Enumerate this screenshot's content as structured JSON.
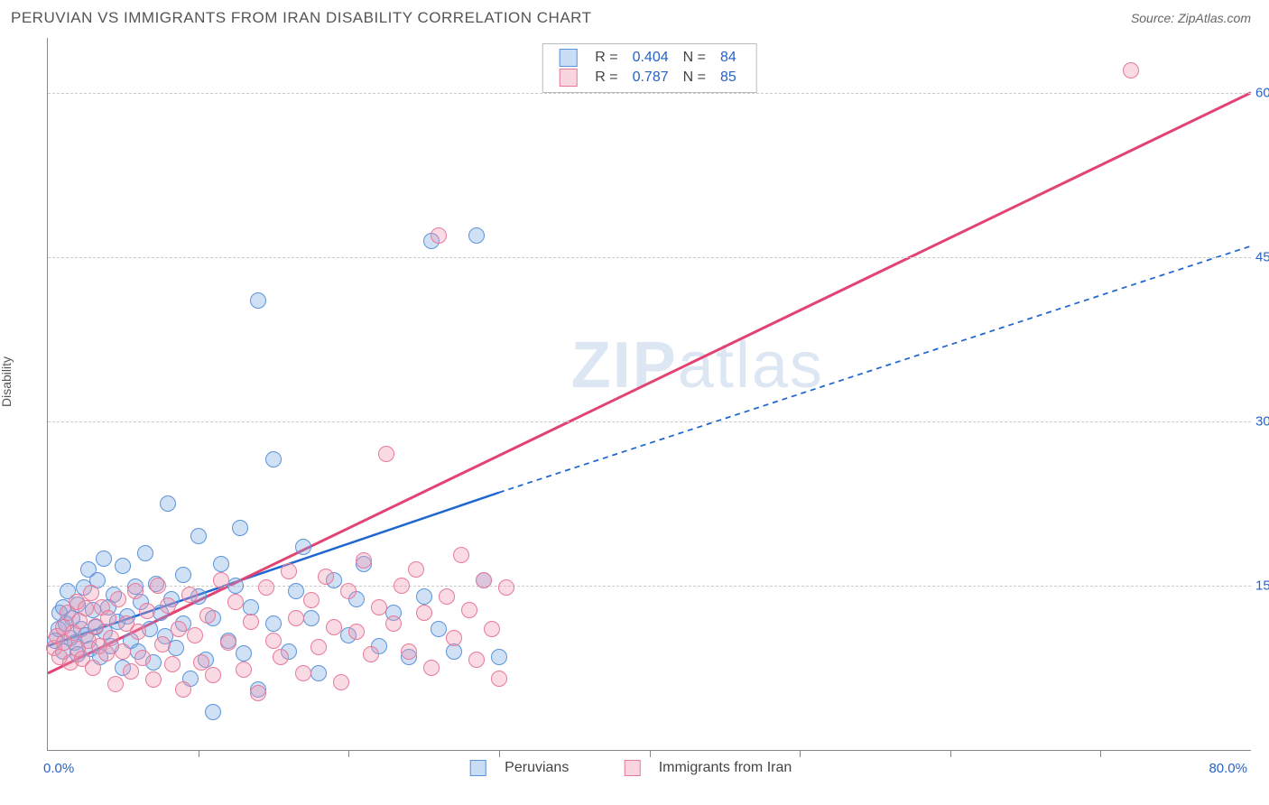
{
  "title": "PERUVIAN VS IMMIGRANTS FROM IRAN DISABILITY CORRELATION CHART",
  "source": "Source: ZipAtlas.com",
  "ylabel": "Disability",
  "watermark": "ZIPatlas",
  "chart": {
    "type": "scatter",
    "xlim": [
      0,
      80
    ],
    "ylim": [
      0,
      65
    ],
    "x_min_label": "0.0%",
    "x_max_label": "80.0%",
    "y_ticks": [
      15,
      30,
      45,
      60
    ],
    "y_tick_labels": [
      "15.0%",
      "30.0%",
      "45.0%",
      "60.0%"
    ],
    "x_minor_ticks": [
      10,
      20,
      30,
      40,
      50,
      60,
      70
    ],
    "background_color": "#ffffff",
    "grid_color": "#cccccc",
    "axis_color": "#888888",
    "marker_radius": 9,
    "series": [
      {
        "name": "Peruvians",
        "color_fill": "rgba(120,170,230,0.35)",
        "color_stroke": "#5b93da",
        "r_label": "R =",
        "r_value": "0.404",
        "n_label": "N =",
        "n_value": "84",
        "trend": {
          "x1": 0,
          "y1": 9.5,
          "x2": 30,
          "y2": 23.5,
          "color": "#1f66d0",
          "width": 2.5,
          "dash": "none",
          "ext_x2": 80,
          "ext_y2": 46,
          "ext_dash": "6,5"
        },
        "points": [
          [
            0.5,
            10
          ],
          [
            0.7,
            11
          ],
          [
            0.8,
            12.5
          ],
          [
            1,
            9
          ],
          [
            1,
            13
          ],
          [
            1.2,
            11.5
          ],
          [
            1.3,
            14.5
          ],
          [
            1.5,
            10.2
          ],
          [
            1.6,
            12
          ],
          [
            1.8,
            9.8
          ],
          [
            2,
            13.3
          ],
          [
            2,
            8.7
          ],
          [
            2.2,
            11
          ],
          [
            2.4,
            14.8
          ],
          [
            2.5,
            10.5
          ],
          [
            2.7,
            16.5
          ],
          [
            2.8,
            9.2
          ],
          [
            3,
            12.8
          ],
          [
            3.2,
            11.2
          ],
          [
            3.3,
            15.5
          ],
          [
            3.5,
            8.5
          ],
          [
            3.7,
            17.5
          ],
          [
            3.8,
            10.8
          ],
          [
            4,
            13
          ],
          [
            4.2,
            9.5
          ],
          [
            4.4,
            14.2
          ],
          [
            4.6,
            11.7
          ],
          [
            5,
            16.8
          ],
          [
            5,
            7.5
          ],
          [
            5.3,
            12.2
          ],
          [
            5.5,
            10
          ],
          [
            5.8,
            14.9
          ],
          [
            6,
            9
          ],
          [
            6.2,
            13.5
          ],
          [
            6.5,
            18
          ],
          [
            6.8,
            11
          ],
          [
            7,
            8
          ],
          [
            7.2,
            15.2
          ],
          [
            7.5,
            12.5
          ],
          [
            7.8,
            10.4
          ],
          [
            8,
            22.5
          ],
          [
            8.2,
            13.8
          ],
          [
            8.5,
            9.3
          ],
          [
            9,
            16
          ],
          [
            9,
            11.5
          ],
          [
            9.5,
            6.5
          ],
          [
            10,
            14
          ],
          [
            10,
            19.5
          ],
          [
            10.5,
            8.2
          ],
          [
            11,
            12
          ],
          [
            11,
            3.5
          ],
          [
            11.5,
            17
          ],
          [
            12,
            10
          ],
          [
            12.5,
            15
          ],
          [
            12.8,
            20.3
          ],
          [
            13,
            8.8
          ],
          [
            13.5,
            13
          ],
          [
            14,
            5.5
          ],
          [
            14,
            41
          ],
          [
            15,
            11.5
          ],
          [
            15,
            26.5
          ],
          [
            16,
            9
          ],
          [
            16.5,
            14.5
          ],
          [
            17,
            18.5
          ],
          [
            17.5,
            12
          ],
          [
            18,
            7
          ],
          [
            19,
            15.5
          ],
          [
            20,
            10.5
          ],
          [
            20.5,
            13.8
          ],
          [
            21,
            17
          ],
          [
            22,
            9.5
          ],
          [
            23,
            12.5
          ],
          [
            24,
            8.5
          ],
          [
            25,
            14
          ],
          [
            25.5,
            46.5
          ],
          [
            26,
            11
          ],
          [
            27,
            9
          ],
          [
            28.5,
            47
          ],
          [
            29,
            15.5
          ],
          [
            30,
            8.5
          ]
        ]
      },
      {
        "name": "Immigrants from Iran",
        "color_fill": "rgba(240,150,175,0.35)",
        "color_stroke": "#e77a9b",
        "r_label": "R =",
        "r_value": "0.787",
        "n_label": "N =",
        "n_value": "85",
        "trend": {
          "x1": 0,
          "y1": 7,
          "x2": 80,
          "y2": 60,
          "color": "#e24373",
          "width": 3,
          "dash": "none"
        },
        "points": [
          [
            0.4,
            9.3
          ],
          [
            0.6,
            10.4
          ],
          [
            0.8,
            8.5
          ],
          [
            1,
            11.2
          ],
          [
            1.1,
            9.8
          ],
          [
            1.3,
            12.5
          ],
          [
            1.5,
            8
          ],
          [
            1.7,
            10.7
          ],
          [
            1.9,
            13.5
          ],
          [
            2,
            9.2
          ],
          [
            2.1,
            11.8
          ],
          [
            2.3,
            8.3
          ],
          [
            2.5,
            12.9
          ],
          [
            2.7,
            10
          ],
          [
            2.9,
            14.3
          ],
          [
            3,
            7.5
          ],
          [
            3.2,
            11.3
          ],
          [
            3.4,
            9.5
          ],
          [
            3.6,
            13
          ],
          [
            3.9,
            8.8
          ],
          [
            4,
            12
          ],
          [
            4.2,
            10.2
          ],
          [
            4.5,
            6
          ],
          [
            4.7,
            13.8
          ],
          [
            5,
            9
          ],
          [
            5.2,
            11.5
          ],
          [
            5.5,
            7.2
          ],
          [
            5.8,
            14.5
          ],
          [
            6,
            10.8
          ],
          [
            6.3,
            8.4
          ],
          [
            6.6,
            12.7
          ],
          [
            7,
            6.4
          ],
          [
            7.3,
            15
          ],
          [
            7.6,
            9.6
          ],
          [
            8,
            13.2
          ],
          [
            8.3,
            7.8
          ],
          [
            8.7,
            11
          ],
          [
            9,
            5.5
          ],
          [
            9.4,
            14.2
          ],
          [
            9.8,
            10.5
          ],
          [
            10.2,
            8
          ],
          [
            10.6,
            12.3
          ],
          [
            11,
            6.8
          ],
          [
            11.5,
            15.5
          ],
          [
            12,
            9.8
          ],
          [
            12.5,
            13.5
          ],
          [
            13,
            7.3
          ],
          [
            13.5,
            11.7
          ],
          [
            14,
            5.2
          ],
          [
            14.5,
            14.8
          ],
          [
            15,
            10
          ],
          [
            15.5,
            8.5
          ],
          [
            16,
            16.3
          ],
          [
            16.5,
            12
          ],
          [
            17,
            7
          ],
          [
            17.5,
            13.7
          ],
          [
            18,
            9.4
          ],
          [
            18.5,
            15.8
          ],
          [
            19,
            11.2
          ],
          [
            19.5,
            6.2
          ],
          [
            20,
            14.5
          ],
          [
            20.5,
            10.8
          ],
          [
            21,
            17.3
          ],
          [
            21.5,
            8.7
          ],
          [
            22,
            13
          ],
          [
            22.5,
            27
          ],
          [
            23,
            11.5
          ],
          [
            23.5,
            15
          ],
          [
            24,
            9
          ],
          [
            24.5,
            16.5
          ],
          [
            25,
            12.5
          ],
          [
            25.5,
            7.5
          ],
          [
            26,
            47
          ],
          [
            26.5,
            14
          ],
          [
            27,
            10.2
          ],
          [
            27.5,
            17.8
          ],
          [
            28,
            12.8
          ],
          [
            28.5,
            8.2
          ],
          [
            29,
            15.5
          ],
          [
            29.5,
            11
          ],
          [
            30,
            6.5
          ],
          [
            30.5,
            14.8
          ],
          [
            72,
            62
          ]
        ]
      }
    ]
  },
  "legend_bottom": {
    "series_a": "Peruvians",
    "series_b": "Immigrants from Iran"
  }
}
